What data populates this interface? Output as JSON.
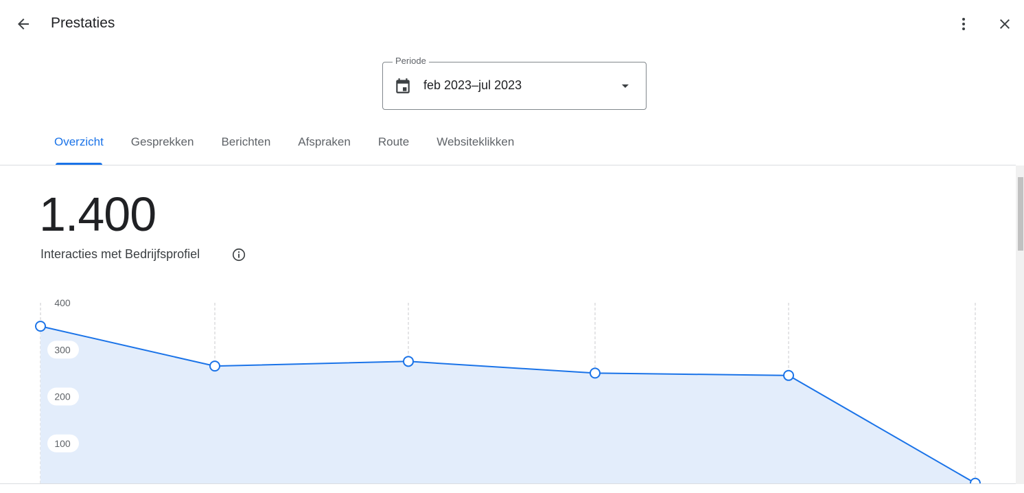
{
  "header": {
    "title": "Prestaties"
  },
  "period": {
    "label": "Periode",
    "value": "feb 2023–jul 2023"
  },
  "tabs": [
    "Overzicht",
    "Gesprekken",
    "Berichten",
    "Afspraken",
    "Route",
    "Websiteklikken"
  ],
  "summary": {
    "value": "1.400",
    "label": "Interacties met Bedrijfsprofiel"
  },
  "chart_data": {
    "type": "line",
    "categories": [
      null,
      null,
      null,
      null,
      null,
      null
    ],
    "values": [
      350,
      265,
      275,
      250,
      245,
      15
    ],
    "color": "#1a73e8",
    "fill": "#e3edfb",
    "ylim": [
      0,
      400
    ],
    "yticks": [
      100,
      200,
      300,
      400
    ],
    "grid": true
  }
}
